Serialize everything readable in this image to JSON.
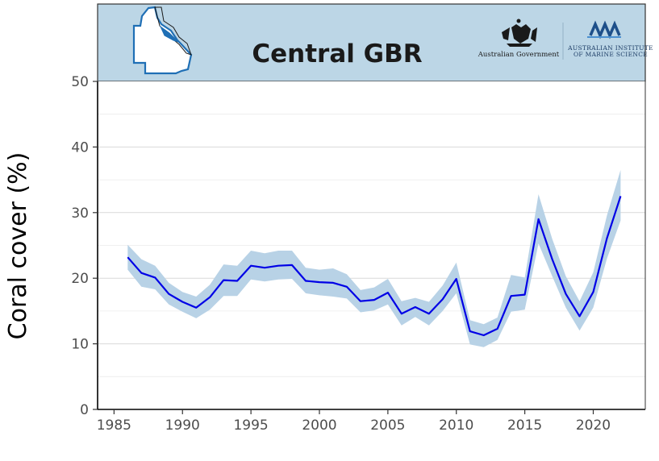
{
  "header": {
    "title": "Central GBR",
    "logo_left_text": "Australian Government",
    "logo_right_line1": "AUSTRALIAN INSTITUTE",
    "logo_right_line2": "OF MARINE SCIENCE",
    "logo_right_mark": "AIMS",
    "band_color": "#bcd6e6"
  },
  "chart_data": {
    "type": "line",
    "title": "Central GBR",
    "xlabel": "",
    "ylabel": "Coral cover (%)",
    "xlim": [
      1983.8,
      2023.8
    ],
    "ylim": [
      0,
      50
    ],
    "xticks": [
      1985,
      1990,
      1995,
      2000,
      2005,
      2010,
      2015,
      2020
    ],
    "yticks": [
      0,
      10,
      20,
      30,
      40,
      50
    ],
    "grid": true,
    "line_color": "#0000e6",
    "band_color": "#b8d2e6",
    "series": [
      {
        "x": [
          1986,
          1987,
          1988,
          1989,
          1990,
          1991,
          1992,
          1993,
          1994,
          1995,
          1996,
          1997,
          1998,
          1999,
          2000,
          2001,
          2002,
          2003,
          2004,
          2005,
          2006,
          2007,
          2008,
          2009,
          2010,
          2011,
          2012,
          2013,
          2014,
          2015,
          2016,
          2017,
          2018,
          2019,
          2020,
          2021,
          2022
        ],
        "values": [
          23.2,
          20.8,
          20.1,
          17.6,
          16.4,
          15.5,
          17.1,
          19.7,
          19.6,
          21.9,
          21.6,
          21.9,
          22.0,
          19.6,
          19.4,
          19.3,
          18.7,
          16.5,
          16.7,
          17.8,
          14.6,
          15.6,
          14.6,
          16.8,
          19.9,
          11.9,
          11.3,
          12.3,
          17.3,
          17.5,
          29.0,
          22.9,
          17.6,
          14.2,
          17.9,
          26.1,
          32.5
        ],
        "lower": [
          21.3,
          18.7,
          18.3,
          16.0,
          14.9,
          13.9,
          15.2,
          17.3,
          17.3,
          19.8,
          19.5,
          19.8,
          19.9,
          17.7,
          17.4,
          17.2,
          16.9,
          14.8,
          15.1,
          16.0,
          12.8,
          14.1,
          12.8,
          15.0,
          17.7,
          9.9,
          9.5,
          10.6,
          14.9,
          15.2,
          25.3,
          20.3,
          15.5,
          12.0,
          15.5,
          23.0,
          28.8
        ],
        "upper": [
          25.1,
          22.9,
          21.9,
          19.3,
          17.9,
          17.2,
          19.0,
          22.1,
          21.9,
          24.2,
          23.8,
          24.2,
          24.2,
          21.6,
          21.3,
          21.5,
          20.6,
          18.2,
          18.6,
          19.9,
          16.5,
          17.0,
          16.4,
          18.9,
          22.4,
          13.6,
          13.0,
          14.0,
          20.5,
          20.1,
          32.8,
          26.0,
          20.3,
          16.5,
          20.9,
          29.6,
          36.5
        ]
      }
    ]
  }
}
